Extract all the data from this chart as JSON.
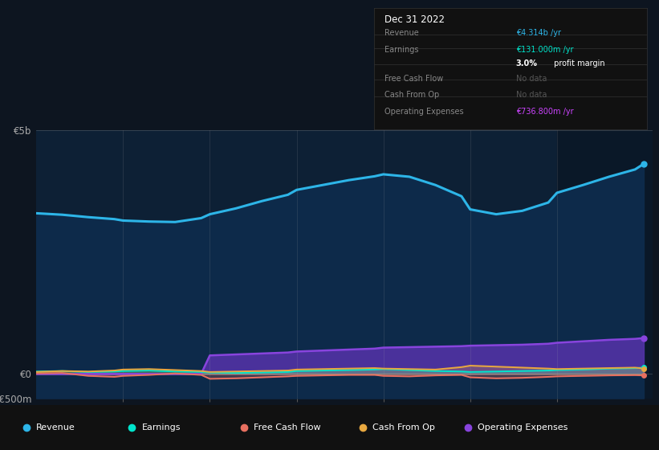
{
  "bg_color": "#0d1520",
  "plot_bg_color": "#0d2035",
  "highlight_bg": "#0a1828",
  "grid_color": "#1e3a5f",
  "years": [
    2016.0,
    2016.3,
    2016.6,
    2016.9,
    2017.0,
    2017.3,
    2017.6,
    2017.9,
    2018.0,
    2018.3,
    2018.6,
    2018.9,
    2019.0,
    2019.3,
    2019.6,
    2019.9,
    2020.0,
    2020.3,
    2020.6,
    2020.9,
    2021.0,
    2021.3,
    2021.6,
    2021.9,
    2022.0,
    2022.3,
    2022.6,
    2022.9,
    2023.0
  ],
  "revenue": [
    3.3,
    3.27,
    3.22,
    3.18,
    3.15,
    3.13,
    3.12,
    3.2,
    3.28,
    3.4,
    3.55,
    3.68,
    3.78,
    3.88,
    3.98,
    4.06,
    4.1,
    4.05,
    3.88,
    3.65,
    3.38,
    3.28,
    3.35,
    3.52,
    3.72,
    3.88,
    4.05,
    4.2,
    4.314
  ],
  "earnings": [
    0.05,
    0.06,
    0.04,
    0.05,
    0.06,
    0.07,
    0.05,
    0.04,
    0.03,
    0.02,
    0.03,
    0.04,
    0.06,
    0.07,
    0.08,
    0.09,
    0.1,
    0.08,
    0.06,
    0.05,
    0.04,
    0.05,
    0.06,
    0.07,
    0.08,
    0.09,
    0.11,
    0.12,
    0.131
  ],
  "free_cash_flow": [
    0.01,
    0.02,
    -0.04,
    -0.06,
    -0.04,
    -0.02,
    0.01,
    -0.02,
    -0.1,
    -0.09,
    -0.07,
    -0.05,
    -0.04,
    -0.03,
    -0.02,
    -0.02,
    -0.04,
    -0.05,
    -0.03,
    -0.02,
    -0.07,
    -0.09,
    -0.08,
    -0.06,
    -0.05,
    -0.04,
    -0.03,
    -0.025,
    -0.03
  ],
  "cash_from_op": [
    0.04,
    0.06,
    0.05,
    0.07,
    0.09,
    0.1,
    0.08,
    0.06,
    0.04,
    0.05,
    0.06,
    0.07,
    0.09,
    0.1,
    0.11,
    0.12,
    0.11,
    0.1,
    0.09,
    0.14,
    0.17,
    0.15,
    0.13,
    0.11,
    0.1,
    0.11,
    0.12,
    0.13,
    0.11
  ],
  "operating_expenses": [
    0.0,
    0.0,
    0.0,
    0.0,
    0.0,
    0.0,
    0.0,
    0.0,
    0.38,
    0.4,
    0.42,
    0.44,
    0.46,
    0.48,
    0.5,
    0.52,
    0.54,
    0.55,
    0.56,
    0.57,
    0.58,
    0.59,
    0.6,
    0.62,
    0.64,
    0.67,
    0.7,
    0.72,
    0.7368
  ],
  "ylim": [
    -0.5,
    5.0
  ],
  "yticks": [
    -0.5,
    0.0,
    5.0
  ],
  "ytick_labels": [
    "-€500m",
    "€0",
    "€5b"
  ],
  "xticks": [
    2017,
    2018,
    2019,
    2020,
    2021,
    2022
  ],
  "xlim_left": 2016.0,
  "xlim_right": 2023.1,
  "highlight_start": 2022.0,
  "revenue_color": "#2db5e8",
  "earnings_color": "#00e5cc",
  "fcf_color": "#e87060",
  "cashop_color": "#e8a840",
  "opex_color": "#8844dd",
  "opex_fill_color": "#5533aa",
  "revenue_fill_color": "#0d2a4a",
  "legend_items": [
    {
      "label": "Revenue",
      "color": "#2db5e8"
    },
    {
      "label": "Earnings",
      "color": "#00e5cc"
    },
    {
      "label": "Free Cash Flow",
      "color": "#e87060"
    },
    {
      "label": "Cash From Op",
      "color": "#e8a840"
    },
    {
      "label": "Operating Expenses",
      "color": "#8844dd"
    }
  ]
}
